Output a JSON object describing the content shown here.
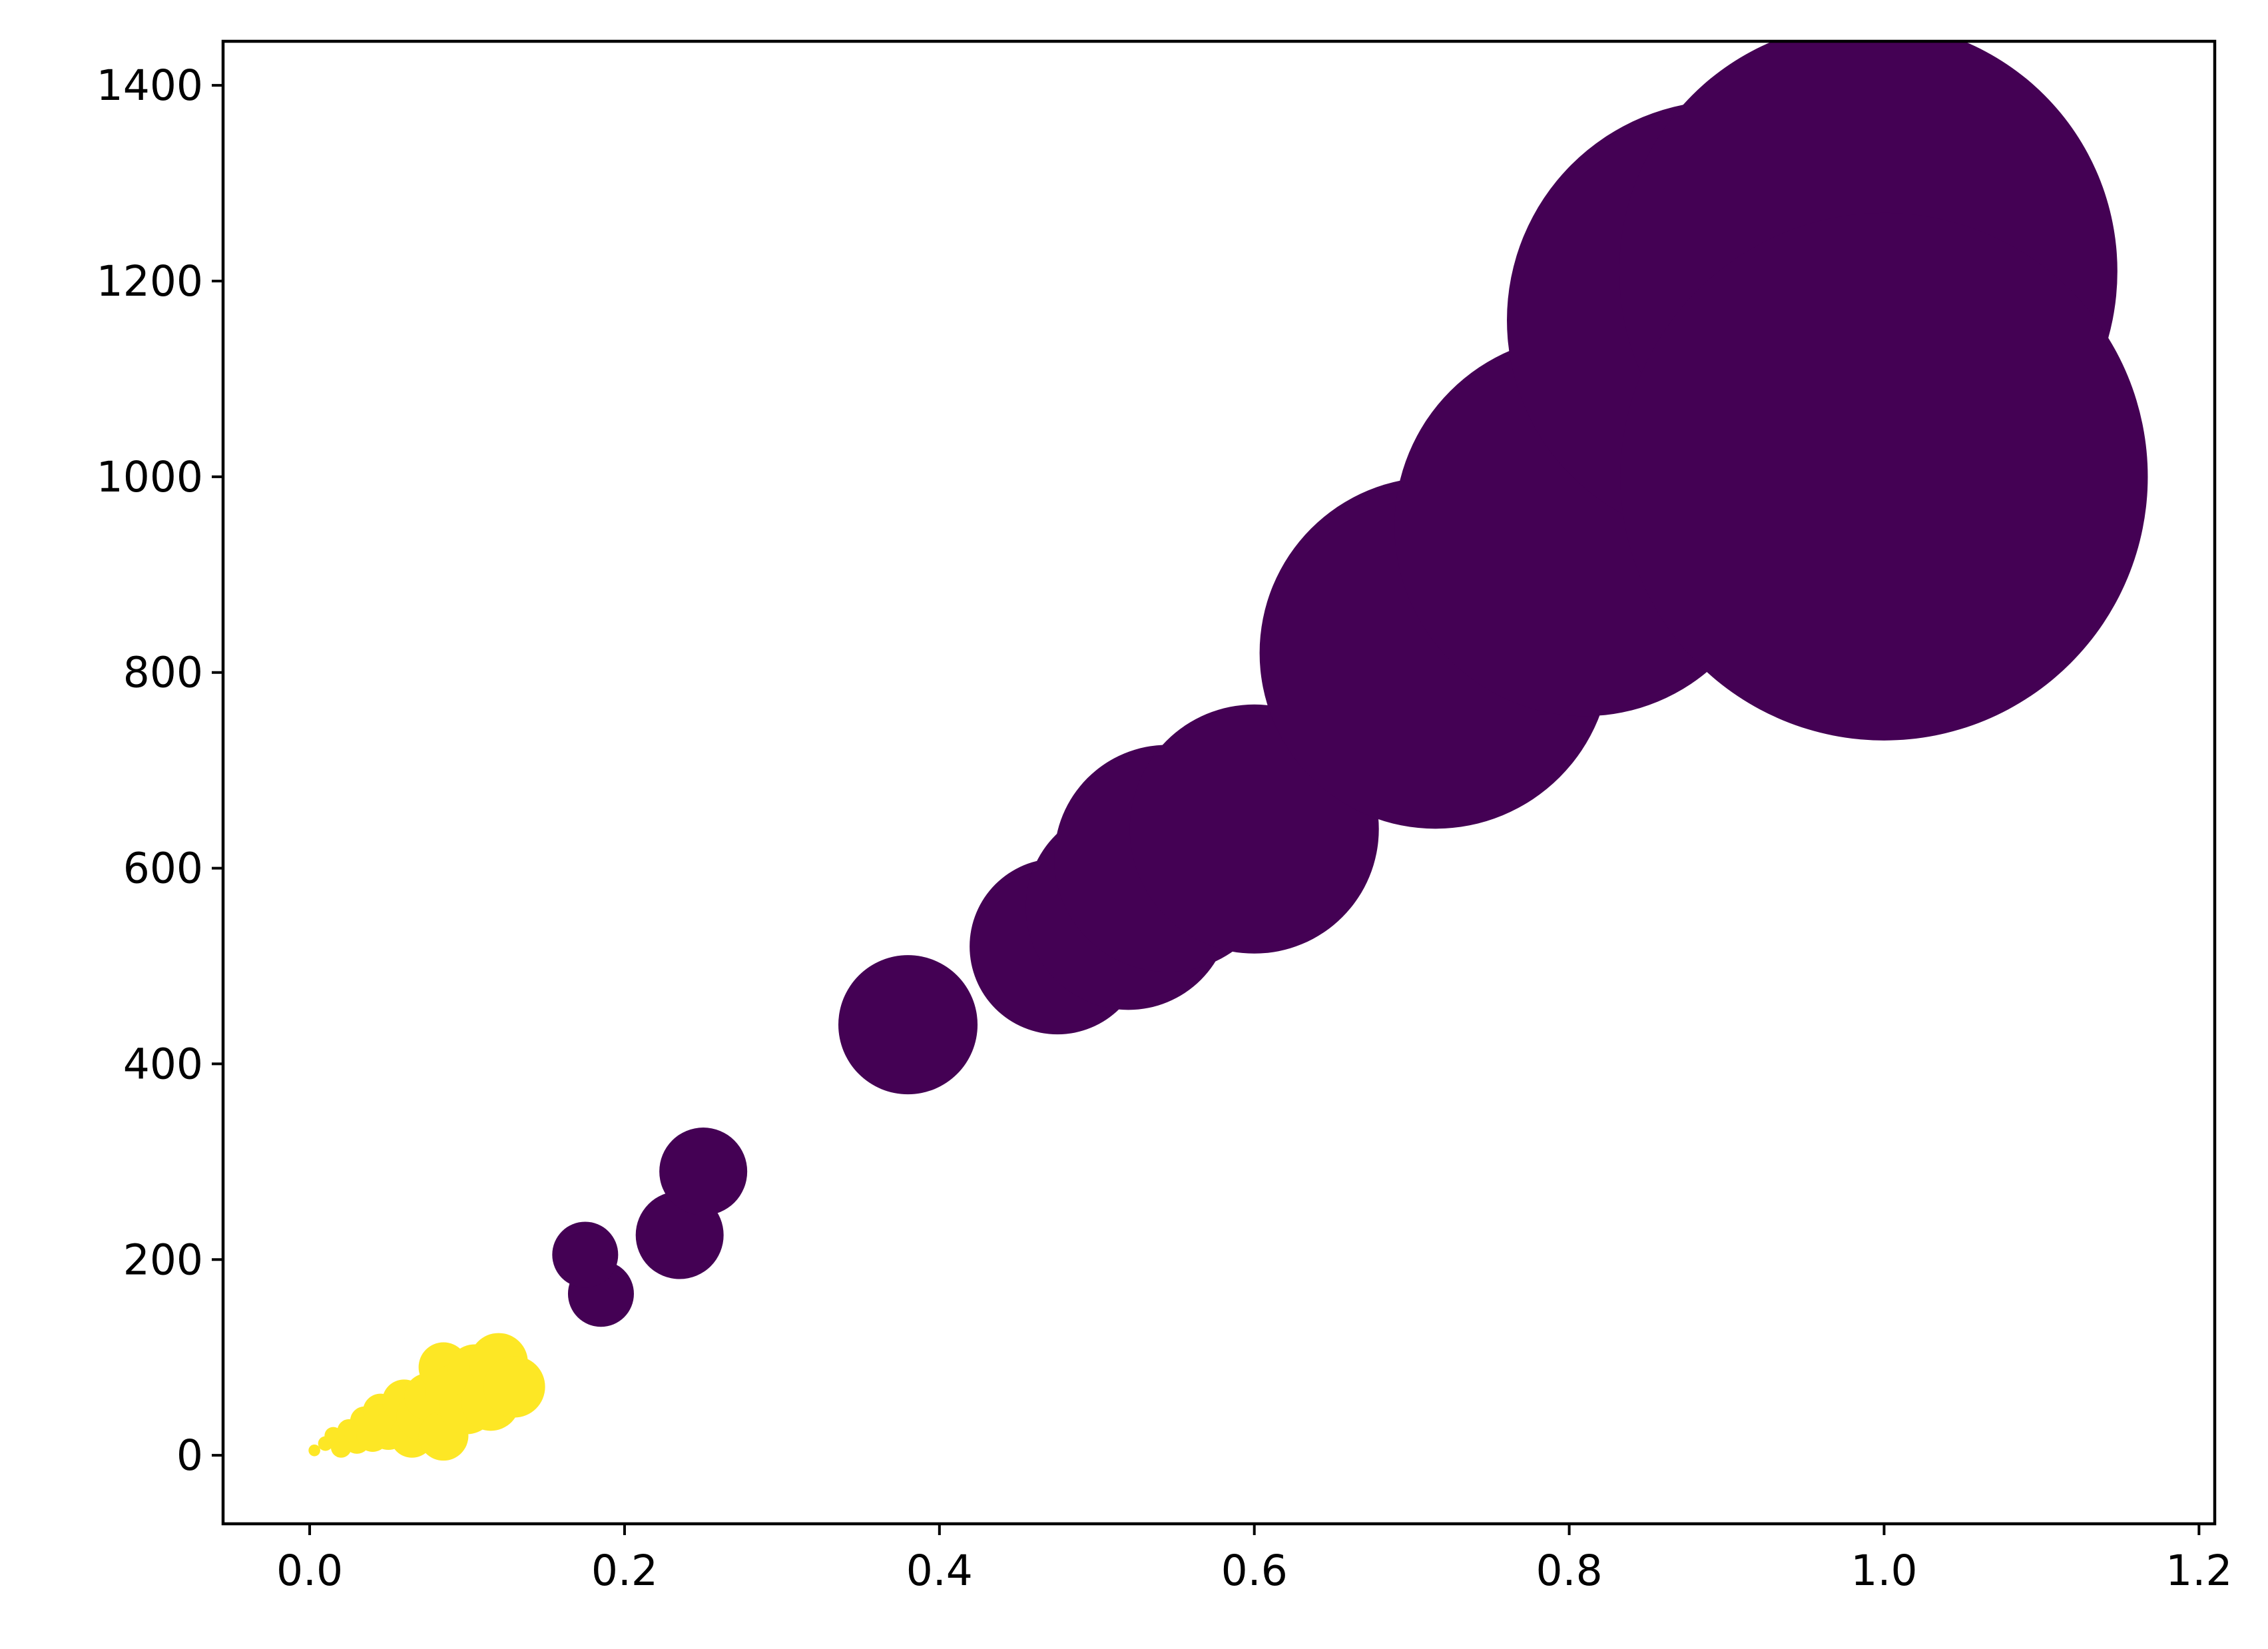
{
  "chart_data": {
    "type": "scatter",
    "title": "",
    "xlabel": "",
    "ylabel": "",
    "xlim": [
      -0.055,
      1.21
    ],
    "ylim": [
      -70,
      1445
    ],
    "x_ticks": [
      0.0,
      0.2,
      0.4,
      0.6,
      0.8,
      1.0,
      1.2
    ],
    "x_tick_labels": [
      "0.0",
      "0.2",
      "0.4",
      "0.6",
      "0.8",
      "1.0",
      "1.2"
    ],
    "y_ticks": [
      0,
      200,
      400,
      600,
      800,
      1000,
      1200,
      1400
    ],
    "y_tick_labels": [
      "0",
      "200",
      "400",
      "600",
      "800",
      "1000",
      "1200",
      "1400"
    ],
    "grid": false,
    "legend": "none",
    "series": [
      {
        "color": "#440154",
        "points": [
          {
            "x": 0.05,
            "y": 55,
            "size": 12
          },
          {
            "x": 0.185,
            "y": 165,
            "size": 45
          },
          {
            "x": 0.175,
            "y": 205,
            "size": 45
          },
          {
            "x": 0.235,
            "y": 225,
            "size": 60
          },
          {
            "x": 0.25,
            "y": 290,
            "size": 60
          },
          {
            "x": 0.38,
            "y": 440,
            "size": 95
          },
          {
            "x": 0.475,
            "y": 520,
            "size": 120
          },
          {
            "x": 0.52,
            "y": 560,
            "size": 140
          },
          {
            "x": 0.545,
            "y": 610,
            "size": 155
          },
          {
            "x": 0.6,
            "y": 640,
            "size": 170
          },
          {
            "x": 0.715,
            "y": 820,
            "size": 240
          },
          {
            "x": 0.81,
            "y": 950,
            "size": 260
          },
          {
            "x": 0.9,
            "y": 1160,
            "size": 300
          },
          {
            "x": 0.99,
            "y": 1210,
            "size": 340
          },
          {
            "x": 1.0,
            "y": 1000,
            "size": 360
          }
        ]
      },
      {
        "color": "#fde725",
        "points": [
          {
            "x": 0.003,
            "y": 5,
            "size": 8
          },
          {
            "x": 0.01,
            "y": 12,
            "size": 10
          },
          {
            "x": 0.015,
            "y": 20,
            "size": 12
          },
          {
            "x": 0.02,
            "y": 8,
            "size": 14
          },
          {
            "x": 0.025,
            "y": 25,
            "size": 16
          },
          {
            "x": 0.03,
            "y": 15,
            "size": 18
          },
          {
            "x": 0.035,
            "y": 35,
            "size": 20
          },
          {
            "x": 0.04,
            "y": 20,
            "size": 22
          },
          {
            "x": 0.045,
            "y": 45,
            "size": 24
          },
          {
            "x": 0.05,
            "y": 25,
            "size": 26
          },
          {
            "x": 0.055,
            "y": 30,
            "size": 28
          },
          {
            "x": 0.06,
            "y": 55,
            "size": 30
          },
          {
            "x": 0.065,
            "y": 20,
            "size": 30
          },
          {
            "x": 0.07,
            "y": 40,
            "size": 32
          },
          {
            "x": 0.075,
            "y": 60,
            "size": 32
          },
          {
            "x": 0.085,
            "y": 20,
            "size": 34
          },
          {
            "x": 0.085,
            "y": 90,
            "size": 34
          },
          {
            "x": 0.09,
            "y": 65,
            "size": 36
          },
          {
            "x": 0.1,
            "y": 50,
            "size": 38
          },
          {
            "x": 0.105,
            "y": 85,
            "size": 38
          },
          {
            "x": 0.115,
            "y": 55,
            "size": 40
          },
          {
            "x": 0.12,
            "y": 95,
            "size": 40
          },
          {
            "x": 0.13,
            "y": 70,
            "size": 42
          }
        ]
      }
    ]
  }
}
